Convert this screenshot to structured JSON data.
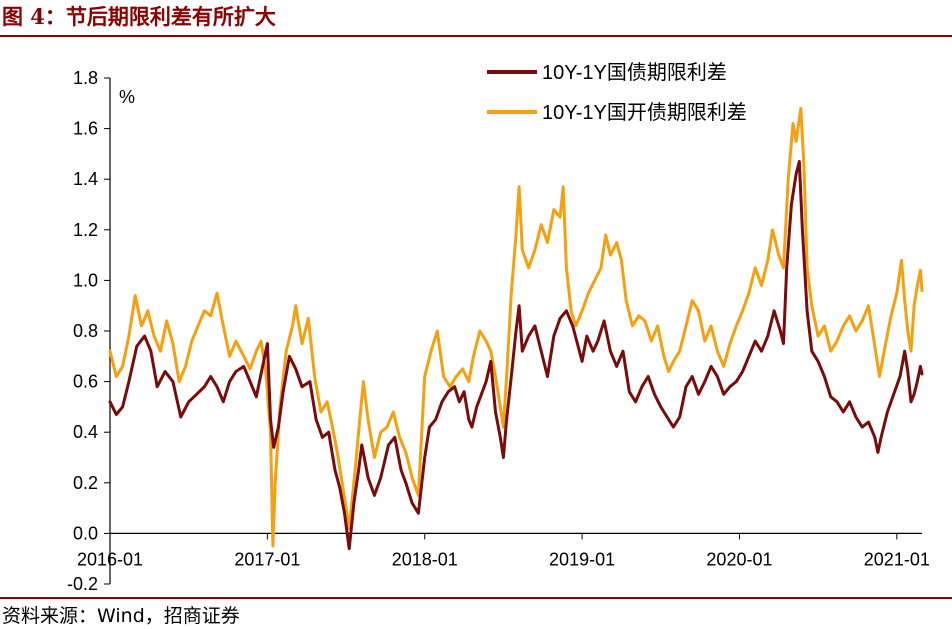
{
  "header": {
    "title": "图 4：节后期限利差有所扩大"
  },
  "footer": {
    "source": "资料来源：Wind，招商证券"
  },
  "colors": {
    "accent": "#8b0000",
    "series1": "#7b0a0a",
    "series2": "#f5a00f"
  },
  "chart_data": {
    "type": "line",
    "title": "节后期限利差有所扩大",
    "ylabel": "%",
    "xlabel": "",
    "ylim": [
      -0.2,
      1.8
    ],
    "yticks": [
      1.8,
      1.6,
      1.4,
      1.2,
      1.0,
      0.8,
      0.6,
      0.4,
      0.2,
      0.0,
      -0.2
    ],
    "ytick_labels": [
      "1.8",
      "1.6",
      "1.4",
      "1.2",
      "1.0",
      "0.8",
      "0.6",
      "0.4",
      "0.2",
      "0.0",
      "-0.2"
    ],
    "xlim": [
      2016.0,
      2021.16
    ],
    "xticks": [
      2016.0,
      2017.0,
      2018.0,
      2019.0,
      2020.0,
      2021.0
    ],
    "xtick_labels": [
      "2016-01",
      "2017-01",
      "2018-01",
      "2019-01",
      "2020-01",
      "2021-01"
    ],
    "legend_position": "top-right",
    "series": [
      {
        "name": "10Y-1Y国债期限利差",
        "color": "#7b0a0a",
        "points": [
          [
            2016.0,
            0.52
          ],
          [
            2016.04,
            0.47
          ],
          [
            2016.08,
            0.5
          ],
          [
            2016.12,
            0.6
          ],
          [
            2016.17,
            0.74
          ],
          [
            2016.22,
            0.78
          ],
          [
            2016.26,
            0.72
          ],
          [
            2016.3,
            0.58
          ],
          [
            2016.35,
            0.64
          ],
          [
            2016.4,
            0.6
          ],
          [
            2016.45,
            0.46
          ],
          [
            2016.5,
            0.52
          ],
          [
            2016.55,
            0.55
          ],
          [
            2016.6,
            0.58
          ],
          [
            2016.64,
            0.62
          ],
          [
            2016.68,
            0.58
          ],
          [
            2016.72,
            0.52
          ],
          [
            2016.76,
            0.6
          ],
          [
            2016.8,
            0.64
          ],
          [
            2016.85,
            0.66
          ],
          [
            2016.89,
            0.6
          ],
          [
            2016.93,
            0.54
          ],
          [
            2016.97,
            0.66
          ],
          [
            2017.0,
            0.75
          ],
          [
            2017.02,
            0.45
          ],
          [
            2017.04,
            0.34
          ],
          [
            2017.07,
            0.42
          ],
          [
            2017.1,
            0.56
          ],
          [
            2017.14,
            0.7
          ],
          [
            2017.18,
            0.65
          ],
          [
            2017.22,
            0.58
          ],
          [
            2017.27,
            0.6
          ],
          [
            2017.31,
            0.45
          ],
          [
            2017.35,
            0.38
          ],
          [
            2017.39,
            0.4
          ],
          [
            2017.43,
            0.25
          ],
          [
            2017.46,
            0.18
          ],
          [
            2017.49,
            0.08
          ],
          [
            2017.52,
            -0.06
          ],
          [
            2017.55,
            0.12
          ],
          [
            2017.58,
            0.25
          ],
          [
            2017.6,
            0.35
          ],
          [
            2017.64,
            0.22
          ],
          [
            2017.68,
            0.15
          ],
          [
            2017.72,
            0.22
          ],
          [
            2017.77,
            0.35
          ],
          [
            2017.81,
            0.38
          ],
          [
            2017.85,
            0.25
          ],
          [
            2017.88,
            0.2
          ],
          [
            2017.92,
            0.12
          ],
          [
            2017.96,
            0.08
          ],
          [
            2018.0,
            0.3
          ],
          [
            2018.03,
            0.42
          ],
          [
            2018.07,
            0.45
          ],
          [
            2018.11,
            0.52
          ],
          [
            2018.15,
            0.56
          ],
          [
            2018.19,
            0.58
          ],
          [
            2018.22,
            0.52
          ],
          [
            2018.25,
            0.56
          ],
          [
            2018.28,
            0.45
          ],
          [
            2018.3,
            0.42
          ],
          [
            2018.33,
            0.5
          ],
          [
            2018.36,
            0.55
          ],
          [
            2018.39,
            0.6
          ],
          [
            2018.42,
            0.68
          ],
          [
            2018.45,
            0.48
          ],
          [
            2018.48,
            0.38
          ],
          [
            2018.5,
            0.3
          ],
          [
            2018.52,
            0.45
          ],
          [
            2018.55,
            0.62
          ],
          [
            2018.58,
            0.8
          ],
          [
            2018.6,
            0.9
          ],
          [
            2018.62,
            0.72
          ],
          [
            2018.66,
            0.78
          ],
          [
            2018.7,
            0.82
          ],
          [
            2018.74,
            0.72
          ],
          [
            2018.78,
            0.62
          ],
          [
            2018.82,
            0.78
          ],
          [
            2018.86,
            0.85
          ],
          [
            2018.9,
            0.88
          ],
          [
            2018.94,
            0.82
          ],
          [
            2018.97,
            0.75
          ],
          [
            2019.0,
            0.68
          ],
          [
            2019.03,
            0.78
          ],
          [
            2019.07,
            0.72
          ],
          [
            2019.1,
            0.76
          ],
          [
            2019.14,
            0.84
          ],
          [
            2019.18,
            0.72
          ],
          [
            2019.22,
            0.66
          ],
          [
            2019.26,
            0.72
          ],
          [
            2019.3,
            0.56
          ],
          [
            2019.34,
            0.52
          ],
          [
            2019.38,
            0.58
          ],
          [
            2019.42,
            0.62
          ],
          [
            2019.46,
            0.55
          ],
          [
            2019.5,
            0.5
          ],
          [
            2019.54,
            0.46
          ],
          [
            2019.58,
            0.42
          ],
          [
            2019.62,
            0.46
          ],
          [
            2019.66,
            0.58
          ],
          [
            2019.7,
            0.62
          ],
          [
            2019.74,
            0.55
          ],
          [
            2019.78,
            0.6
          ],
          [
            2019.82,
            0.66
          ],
          [
            2019.86,
            0.62
          ],
          [
            2019.9,
            0.55
          ],
          [
            2019.94,
            0.58
          ],
          [
            2019.98,
            0.6
          ],
          [
            2020.02,
            0.64
          ],
          [
            2020.06,
            0.7
          ],
          [
            2020.1,
            0.76
          ],
          [
            2020.14,
            0.72
          ],
          [
            2020.18,
            0.78
          ],
          [
            2020.22,
            0.88
          ],
          [
            2020.26,
            0.8
          ],
          [
            2020.28,
            0.75
          ],
          [
            2020.3,
            1.05
          ],
          [
            2020.33,
            1.3
          ],
          [
            2020.36,
            1.42
          ],
          [
            2020.38,
            1.47
          ],
          [
            2020.4,
            1.2
          ],
          [
            2020.43,
            0.88
          ],
          [
            2020.46,
            0.72
          ],
          [
            2020.5,
            0.68
          ],
          [
            2020.54,
            0.62
          ],
          [
            2020.58,
            0.54
          ],
          [
            2020.62,
            0.52
          ],
          [
            2020.66,
            0.48
          ],
          [
            2020.7,
            0.52
          ],
          [
            2020.74,
            0.46
          ],
          [
            2020.78,
            0.42
          ],
          [
            2020.82,
            0.44
          ],
          [
            2020.86,
            0.38
          ],
          [
            2020.88,
            0.32
          ],
          [
            2020.9,
            0.38
          ],
          [
            2020.94,
            0.48
          ],
          [
            2020.98,
            0.55
          ],
          [
            2021.02,
            0.62
          ],
          [
            2021.05,
            0.72
          ],
          [
            2021.07,
            0.64
          ],
          [
            2021.09,
            0.52
          ],
          [
            2021.11,
            0.55
          ],
          [
            2021.13,
            0.6
          ],
          [
            2021.15,
            0.66
          ],
          [
            2021.16,
            0.63
          ]
        ]
      },
      {
        "name": "10Y-1Y国开债期限利差",
        "color": "#f5a00f",
        "points": [
          [
            2016.0,
            0.72
          ],
          [
            2016.04,
            0.62
          ],
          [
            2016.08,
            0.66
          ],
          [
            2016.12,
            0.78
          ],
          [
            2016.16,
            0.94
          ],
          [
            2016.2,
            0.82
          ],
          [
            2016.24,
            0.88
          ],
          [
            2016.28,
            0.78
          ],
          [
            2016.32,
            0.72
          ],
          [
            2016.36,
            0.84
          ],
          [
            2016.4,
            0.75
          ],
          [
            2016.44,
            0.6
          ],
          [
            2016.48,
            0.66
          ],
          [
            2016.52,
            0.76
          ],
          [
            2016.56,
            0.82
          ],
          [
            2016.6,
            0.88
          ],
          [
            2016.64,
            0.86
          ],
          [
            2016.68,
            0.95
          ],
          [
            2016.72,
            0.82
          ],
          [
            2016.76,
            0.7
          ],
          [
            2016.8,
            0.76
          ],
          [
            2016.85,
            0.7
          ],
          [
            2016.89,
            0.65
          ],
          [
            2016.93,
            0.72
          ],
          [
            2016.96,
            0.76
          ],
          [
            2016.99,
            0.64
          ],
          [
            2017.02,
            0.4
          ],
          [
            2017.035,
            -0.05
          ],
          [
            2017.05,
            0.2
          ],
          [
            2017.08,
            0.5
          ],
          [
            2017.12,
            0.72
          ],
          [
            2017.16,
            0.82
          ],
          [
            2017.18,
            0.9
          ],
          [
            2017.22,
            0.75
          ],
          [
            2017.26,
            0.85
          ],
          [
            2017.3,
            0.62
          ],
          [
            2017.34,
            0.48
          ],
          [
            2017.38,
            0.52
          ],
          [
            2017.42,
            0.4
          ],
          [
            2017.45,
            0.3
          ],
          [
            2017.48,
            0.18
          ],
          [
            2017.52,
            0.02
          ],
          [
            2017.55,
            0.2
          ],
          [
            2017.58,
            0.4
          ],
          [
            2017.61,
            0.6
          ],
          [
            2017.64,
            0.45
          ],
          [
            2017.68,
            0.3
          ],
          [
            2017.72,
            0.4
          ],
          [
            2017.76,
            0.42
          ],
          [
            2017.8,
            0.48
          ],
          [
            2017.84,
            0.38
          ],
          [
            2017.88,
            0.32
          ],
          [
            2017.92,
            0.22
          ],
          [
            2017.96,
            0.15
          ],
          [
            2018.0,
            0.62
          ],
          [
            2018.04,
            0.72
          ],
          [
            2018.08,
            0.8
          ],
          [
            2018.12,
            0.62
          ],
          [
            2018.16,
            0.58
          ],
          [
            2018.2,
            0.62
          ],
          [
            2018.24,
            0.65
          ],
          [
            2018.28,
            0.6
          ],
          [
            2018.31,
            0.7
          ],
          [
            2018.35,
            0.8
          ],
          [
            2018.39,
            0.76
          ],
          [
            2018.42,
            0.72
          ],
          [
            2018.45,
            0.62
          ],
          [
            2018.48,
            0.5
          ],
          [
            2018.5,
            0.42
          ],
          [
            2018.52,
            0.62
          ],
          [
            2018.55,
            0.95
          ],
          [
            2018.58,
            1.18
          ],
          [
            2018.6,
            1.37
          ],
          [
            2018.62,
            1.12
          ],
          [
            2018.66,
            1.05
          ],
          [
            2018.7,
            1.12
          ],
          [
            2018.74,
            1.22
          ],
          [
            2018.78,
            1.15
          ],
          [
            2018.82,
            1.28
          ],
          [
            2018.86,
            1.25
          ],
          [
            2018.88,
            1.37
          ],
          [
            2018.9,
            1.05
          ],
          [
            2018.93,
            0.88
          ],
          [
            2018.96,
            0.82
          ],
          [
            2019.0,
            0.88
          ],
          [
            2019.04,
            0.95
          ],
          [
            2019.08,
            1.0
          ],
          [
            2019.12,
            1.05
          ],
          [
            2019.15,
            1.18
          ],
          [
            2019.18,
            1.1
          ],
          [
            2019.22,
            1.15
          ],
          [
            2019.25,
            1.08
          ],
          [
            2019.28,
            0.92
          ],
          [
            2019.32,
            0.82
          ],
          [
            2019.36,
            0.86
          ],
          [
            2019.4,
            0.84
          ],
          [
            2019.44,
            0.76
          ],
          [
            2019.48,
            0.82
          ],
          [
            2019.52,
            0.7
          ],
          [
            2019.55,
            0.64
          ],
          [
            2019.58,
            0.68
          ],
          [
            2019.62,
            0.72
          ],
          [
            2019.66,
            0.82
          ],
          [
            2019.7,
            0.92
          ],
          [
            2019.74,
            0.88
          ],
          [
            2019.78,
            0.76
          ],
          [
            2019.82,
            0.82
          ],
          [
            2019.86,
            0.72
          ],
          [
            2019.9,
            0.66
          ],
          [
            2019.94,
            0.75
          ],
          [
            2019.98,
            0.82
          ],
          [
            2020.02,
            0.88
          ],
          [
            2020.06,
            0.95
          ],
          [
            2020.1,
            1.05
          ],
          [
            2020.14,
            0.98
          ],
          [
            2020.18,
            1.08
          ],
          [
            2020.21,
            1.2
          ],
          [
            2020.25,
            1.1
          ],
          [
            2020.28,
            1.05
          ],
          [
            2020.31,
            1.4
          ],
          [
            2020.34,
            1.62
          ],
          [
            2020.36,
            1.55
          ],
          [
            2020.39,
            1.68
          ],
          [
            2020.41,
            1.45
          ],
          [
            2020.43,
            1.05
          ],
          [
            2020.46,
            0.9
          ],
          [
            2020.5,
            0.78
          ],
          [
            2020.54,
            0.82
          ],
          [
            2020.58,
            0.72
          ],
          [
            2020.62,
            0.76
          ],
          [
            2020.66,
            0.82
          ],
          [
            2020.7,
            0.86
          ],
          [
            2020.74,
            0.8
          ],
          [
            2020.78,
            0.84
          ],
          [
            2020.82,
            0.9
          ],
          [
            2020.86,
            0.74
          ],
          [
            2020.89,
            0.62
          ],
          [
            2020.92,
            0.72
          ],
          [
            2020.96,
            0.85
          ],
          [
            2021.0,
            0.95
          ],
          [
            2021.03,
            1.08
          ],
          [
            2021.05,
            0.92
          ],
          [
            2021.07,
            0.8
          ],
          [
            2021.09,
            0.72
          ],
          [
            2021.11,
            0.9
          ],
          [
            2021.13,
            0.98
          ],
          [
            2021.15,
            1.04
          ],
          [
            2021.16,
            0.96
          ]
        ]
      }
    ]
  }
}
